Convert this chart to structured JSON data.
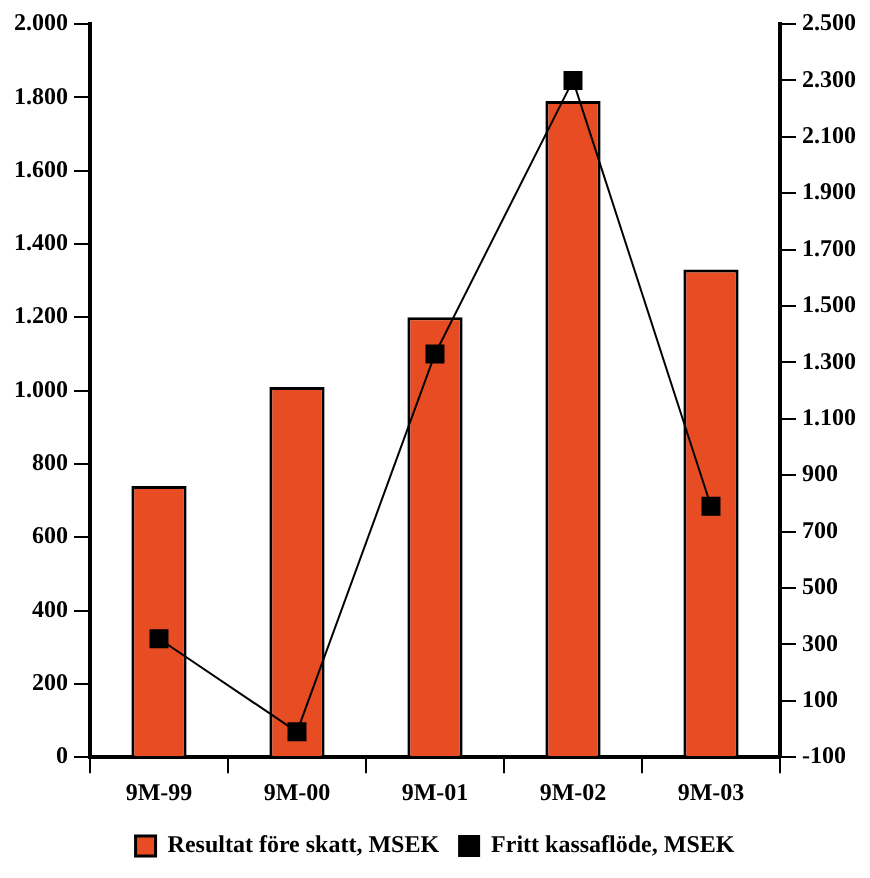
{
  "chart_data": {
    "type": "bar",
    "categories": [
      "9M-99",
      "9M-00",
      "9M-01",
      "9M-02",
      "9M-03"
    ],
    "series": [
      {
        "name": "Resultat före skatt, MSEK",
        "color": "#e84c22",
        "values": [
          740,
          1010,
          1200,
          1790,
          1330
        ]
      },
      {
        "name": "Fritt kassaflöde, MSEK",
        "type": "line",
        "axis": "y2",
        "color": "#000000",
        "values": [
          320,
          -10,
          1330,
          2300,
          790
        ]
      }
    ],
    "ylim": [
      0,
      2000
    ],
    "yticks": [
      0,
      200,
      400,
      600,
      800,
      {
        "value": 1000,
        "label": "1.000"
      },
      {
        "value": 1200,
        "label": "1.200"
      },
      {
        "value": 1400,
        "label": "1.400"
      },
      {
        "value": 1600,
        "label": "1.600"
      },
      {
        "value": 1800,
        "label": "1.800"
      },
      {
        "value": 2000,
        "label": "2.000"
      }
    ],
    "y2lim": [
      -100,
      2500
    ],
    "y2ticks": [
      -100,
      100,
      300,
      500,
      700,
      900,
      {
        "value": 1100,
        "label": "1.100"
      },
      {
        "value": 1300,
        "label": "1.300"
      },
      {
        "value": 1500,
        "label": "1.500"
      },
      {
        "value": 1700,
        "label": "1.700"
      },
      {
        "value": 1900,
        "label": "1.900"
      },
      {
        "value": 2100,
        "label": "2.100"
      },
      {
        "value": 2300,
        "label": "2.300"
      },
      {
        "value": 2500,
        "label": "2.500"
      }
    ],
    "grid": false,
    "legend": "bottom",
    "marker": "square",
    "line_style": "solid"
  }
}
